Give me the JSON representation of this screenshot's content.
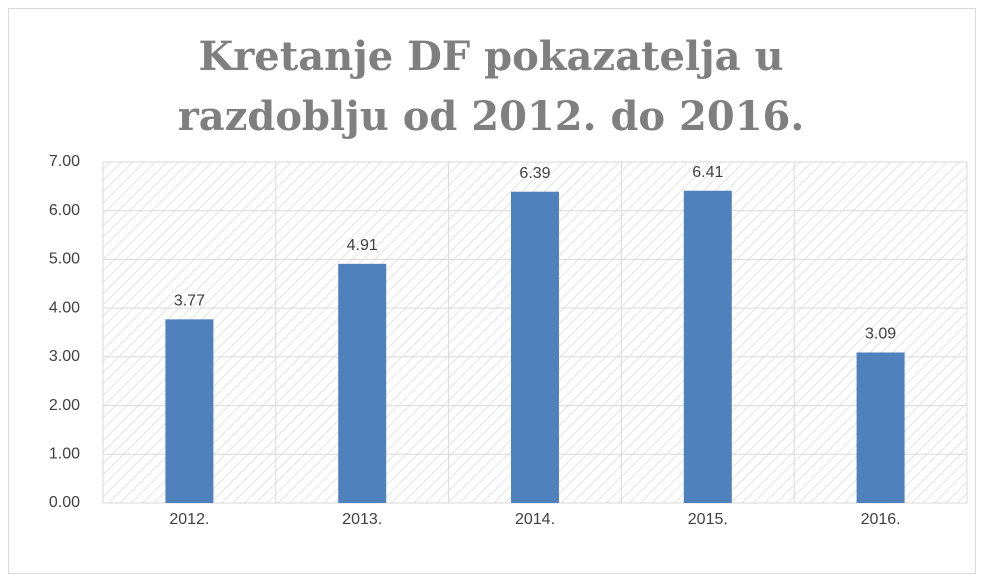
{
  "chart_data": {
    "type": "bar",
    "title": "Kretanje DF pokazatelja u razdoblju od 2012. do 2016.",
    "categories": [
      "2012.",
      "2013.",
      "2014.",
      "2015.",
      "2016."
    ],
    "values": [
      3.77,
      4.91,
      6.39,
      6.41,
      3.09
    ],
    "color": "#4f81bd",
    "ylim": [
      0,
      7
    ],
    "yticks": [
      {
        "value": 0,
        "label": "0.00"
      },
      {
        "value": 1,
        "label": "1.00"
      },
      {
        "value": 2,
        "label": "2.00"
      },
      {
        "value": 3,
        "label": "3.00"
      },
      {
        "value": 4,
        "label": "4.00"
      },
      {
        "value": 5,
        "label": "5.00"
      },
      {
        "value": 6,
        "label": "6.00"
      },
      {
        "value": 7,
        "label": "7.00"
      }
    ],
    "grid": true
  }
}
